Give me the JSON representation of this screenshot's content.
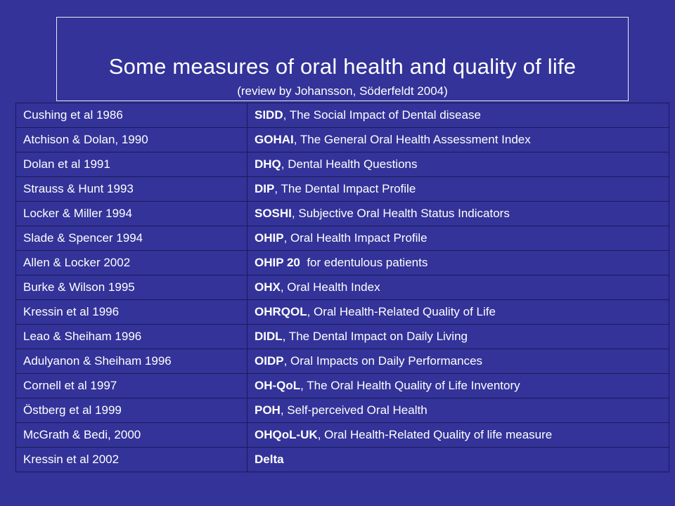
{
  "title": "Some measures of oral health and quality of life",
  "subtitle": "(review by Johansson, Söderfeldt 2004)",
  "rows": [
    {
      "author": "Cushing et al 1986",
      "abbr": "SIDD",
      "desc": ", The Social Impact of Dental disease"
    },
    {
      "author": "Atchison & Dolan, 1990",
      "abbr": "GOHAI",
      "desc": ", The General Oral Health Assessment Index"
    },
    {
      "author": "Dolan et al 1991",
      "abbr": "DHQ",
      "desc": ", Dental Health Questions"
    },
    {
      "author": "Strauss & Hunt 1993",
      "abbr": "DIP",
      "desc": ", The Dental Impact Profile"
    },
    {
      "author": "Locker & Miller 1994",
      "abbr": "SOSHI",
      "desc": ", Subjective Oral Health Status Indicators"
    },
    {
      "author": "Slade & Spencer 1994",
      "abbr": "OHIP",
      "desc": ", Oral Health Impact Profile"
    },
    {
      "author": "Allen & Locker 2002",
      "abbr": "OHIP 20",
      "desc": "  for edentulous patients"
    },
    {
      "author": "Burke & Wilson 1995",
      "abbr": "OHX",
      "desc": ", Oral Health Index"
    },
    {
      "author": "Kressin et al 1996",
      "abbr": "OHRQOL",
      "desc": ", Oral Health-Related Quality of Life"
    },
    {
      "author": "Leao & Sheiham 1996",
      "abbr": "DIDL",
      "desc": ", The Dental Impact on Daily Living"
    },
    {
      "author": "Adulyanon & Sheiham 1996",
      "abbr": "OIDP",
      "desc": ", Oral Impacts on Daily Performances"
    },
    {
      "author": "Cornell et al 1997",
      "abbr": "OH-QoL",
      "desc": ", The Oral Health Quality of Life Inventory"
    },
    {
      "author": "Östberg et al 1999",
      "abbr": "POH",
      "desc": ", Self-perceived Oral Health"
    },
    {
      "author": "McGrath & Bedi, 2000",
      "abbr": "OHQoL-UK",
      "desc": ", Oral Health-Related Quality of life measure"
    },
    {
      "author": "Kressin et al 2002",
      "abbr": "Delta",
      "desc": ""
    }
  ],
  "colors": {
    "background": "#333399",
    "text": "#ffffff",
    "grid": "#1a1a5a"
  }
}
